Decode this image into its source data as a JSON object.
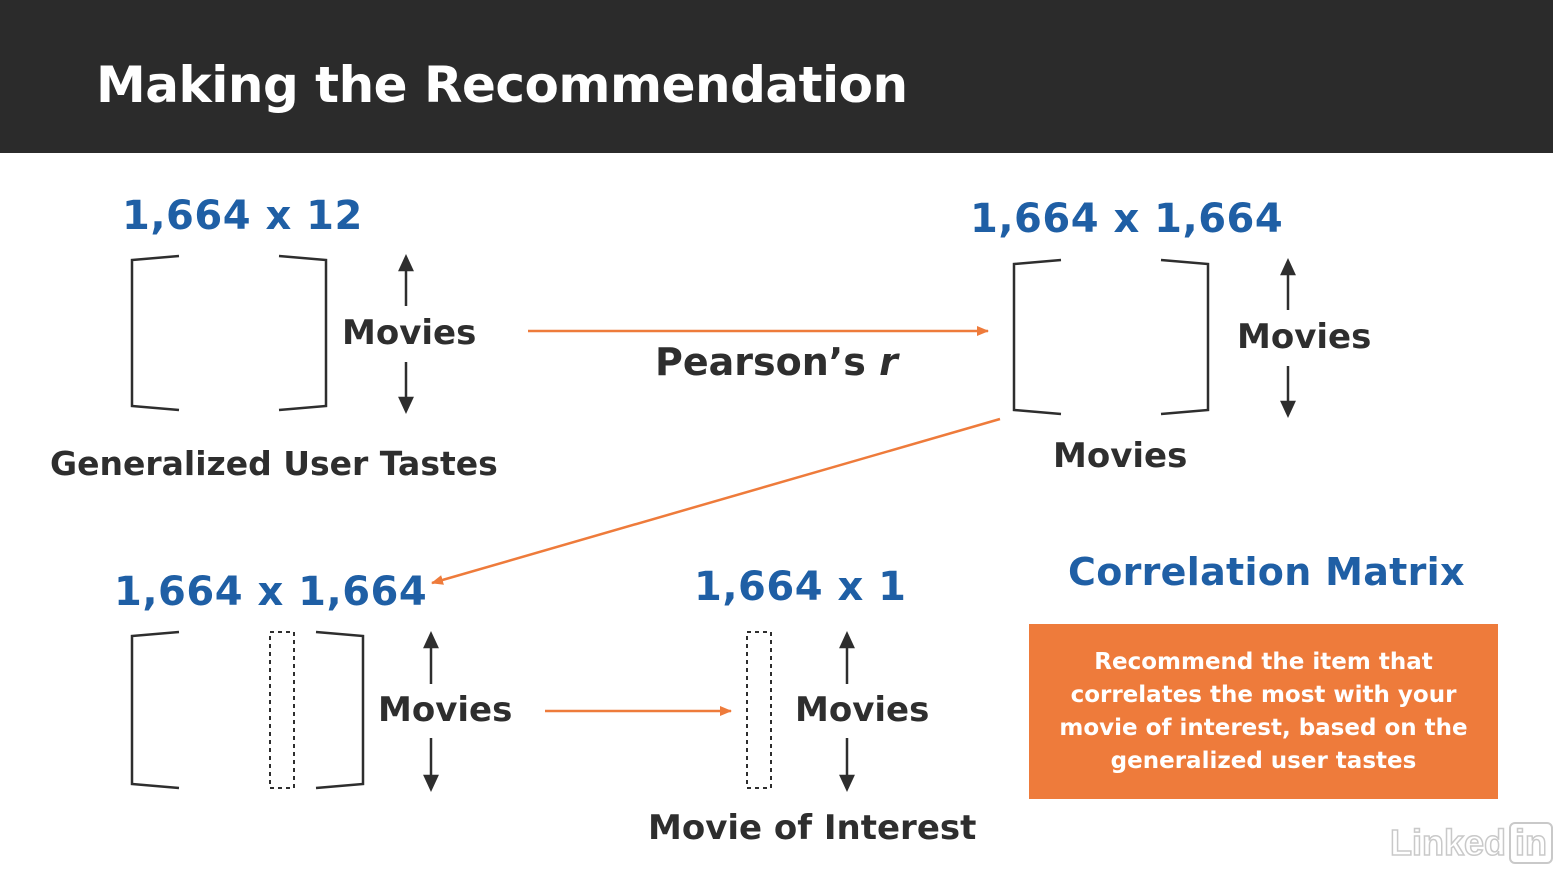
{
  "header": {
    "title": "Making the Recommendation"
  },
  "diagram": {
    "user_tastes_matrix": {
      "dimensions": "1,664 x 12",
      "row_label": "Movies",
      "caption": "Generalized User Tastes"
    },
    "arrow_label_main": "Pearson’s",
    "arrow_label_var": "r",
    "correlation_matrix": {
      "dimensions": "1,664 x 1,664",
      "row_label": "Movies",
      "column_label": "Movies"
    },
    "selected_matrix": {
      "dimensions": "1,664 x 1,664",
      "row_label": "Movies"
    },
    "result_vector": {
      "dimensions": "1,664 x 1",
      "row_label": "Movies",
      "caption": "Movie of Interest"
    },
    "section_heading": "Correlation Matrix",
    "callout_text": "Recommend the item that correlates the most with your movie of interest, based on the generalized user tastes"
  },
  "branding": {
    "logo_text": "Linked",
    "logo_in": "in"
  },
  "colors": {
    "header_bg": "#2b2b2b",
    "accent_blue": "#1f5fa5",
    "accent_orange": "#ee7b3b",
    "text_dark": "#2e2e2e"
  }
}
